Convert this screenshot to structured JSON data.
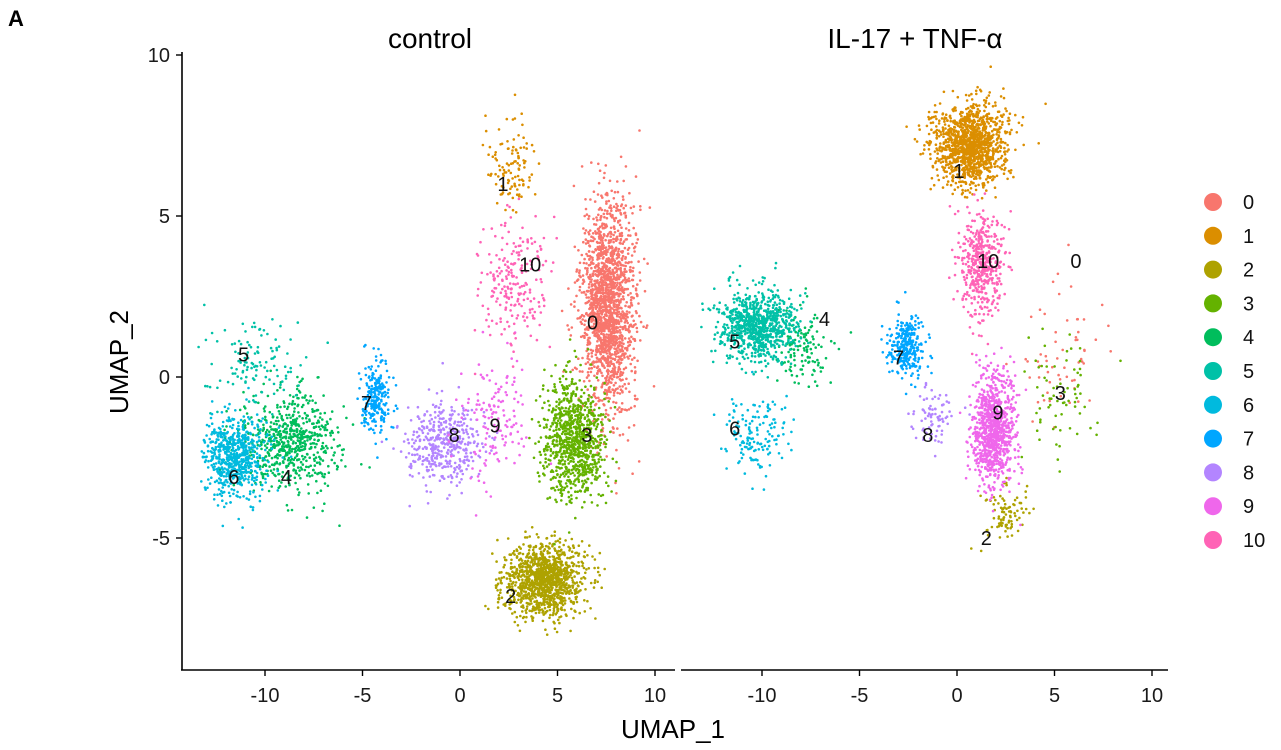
{
  "panel_label": "A",
  "chart_data": {
    "type": "scatter",
    "description": "UMAP projection of single cells, faceted by condition, colored by cluster",
    "xlabel": "UMAP_1",
    "ylabel": "UMAP_2",
    "xlim": [
      -14,
      11
    ],
    "ylim": [
      -9.3,
      10.2
    ],
    "xticks": [
      -10,
      -5,
      0,
      5,
      10
    ],
    "yticks": [
      -5,
      0,
      5,
      10
    ],
    "grid": false,
    "legend_position": "right",
    "legend": [
      {
        "label": "0",
        "color": "#F8766D"
      },
      {
        "label": "1",
        "color": "#DB8E00"
      },
      {
        "label": "2",
        "color": "#AEA200"
      },
      {
        "label": "3",
        "color": "#64B200"
      },
      {
        "label": "4",
        "color": "#00BD5C"
      },
      {
        "label": "5",
        "color": "#00C1A7"
      },
      {
        "label": "6",
        "color": "#00BADE"
      },
      {
        "label": "7",
        "color": "#00A6FF"
      },
      {
        "label": "8",
        "color": "#B385FF"
      },
      {
        "label": "9",
        "color": "#EF67EB"
      },
      {
        "label": "10",
        "color": "#FF63B6"
      }
    ],
    "facets": [
      {
        "title": "control",
        "cluster_label_positions": [
          {
            "label": "0",
            "x": 6.8,
            "y": 1.7
          },
          {
            "label": "1",
            "x": 2.2,
            "y": 6.0
          },
          {
            "label": "2",
            "x": 2.6,
            "y": -6.8
          },
          {
            "label": "3",
            "x": 6.5,
            "y": -1.8
          },
          {
            "label": "4",
            "x": -8.9,
            "y": -3.1
          },
          {
            "label": "5",
            "x": -11.1,
            "y": 0.7
          },
          {
            "label": "6",
            "x": -11.6,
            "y": -3.1
          },
          {
            "label": "7",
            "x": -4.8,
            "y": -0.8
          },
          {
            "label": "8",
            "x": -0.3,
            "y": -1.8
          },
          {
            "label": "9",
            "x": 1.8,
            "y": -1.5
          },
          {
            "label": "10",
            "x": 3.6,
            "y": 3.5
          }
        ],
        "clusters": [
          {
            "cluster": "0",
            "cx": 7.6,
            "cy": 2.2,
            "sx": 1.1,
            "sy": 2.6,
            "n": 1800
          },
          {
            "cluster": "1",
            "cx": 2.7,
            "cy": 6.6,
            "sx": 1.0,
            "sy": 1.2,
            "n": 110
          },
          {
            "cluster": "2",
            "cx": 4.4,
            "cy": -6.3,
            "sx": 1.6,
            "sy": 0.9,
            "n": 1200
          },
          {
            "cluster": "3",
            "cx": 5.8,
            "cy": -1.9,
            "sx": 1.3,
            "sy": 1.5,
            "n": 900
          },
          {
            "cluster": "4",
            "cx": -8.7,
            "cy": -2.0,
            "sx": 2.0,
            "sy": 1.2,
            "n": 650
          },
          {
            "cluster": "5",
            "cx": -10.5,
            "cy": 0.4,
            "sx": 2.0,
            "sy": 1.1,
            "n": 120
          },
          {
            "cluster": "6",
            "cx": -11.6,
            "cy": -2.5,
            "sx": 1.3,
            "sy": 1.0,
            "n": 650
          },
          {
            "cluster": "7",
            "cx": -4.3,
            "cy": -0.6,
            "sx": 0.6,
            "sy": 0.9,
            "n": 230
          },
          {
            "cluster": "8",
            "cx": -0.8,
            "cy": -2.1,
            "sx": 1.5,
            "sy": 1.0,
            "n": 420
          },
          {
            "cluster": "9",
            "cx": 1.8,
            "cy": -1.4,
            "sx": 1.4,
            "sy": 1.6,
            "n": 140
          },
          {
            "cluster": "10",
            "cx": 2.9,
            "cy": 2.9,
            "sx": 1.4,
            "sy": 1.6,
            "n": 220
          }
        ]
      },
      {
        "title": "IL-17 + TNF-α",
        "cluster_label_positions": [
          {
            "label": "0",
            "x": 6.1,
            "y": 3.6
          },
          {
            "label": "1",
            "x": 0.1,
            "y": 6.4
          },
          {
            "label": "2",
            "x": 1.5,
            "y": -5.0
          },
          {
            "label": "3",
            "x": 5.3,
            "y": -0.5
          },
          {
            "label": "4",
            "x": -6.8,
            "y": 1.8
          },
          {
            "label": "5",
            "x": -11.4,
            "y": 1.1
          },
          {
            "label": "6",
            "x": -11.4,
            "y": -1.6
          },
          {
            "label": "7",
            "x": -3.0,
            "y": 0.6
          },
          {
            "label": "8",
            "x": -1.5,
            "y": -1.8
          },
          {
            "label": "9",
            "x": 2.1,
            "y": -1.1
          },
          {
            "label": "10",
            "x": 1.6,
            "y": 3.6
          }
        ],
        "clusters": [
          {
            "cluster": "0",
            "cx": 5.2,
            "cy": 0.8,
            "sx": 2.0,
            "sy": 2.0,
            "n": 60
          },
          {
            "cluster": "1",
            "cx": 0.7,
            "cy": 7.2,
            "sx": 1.5,
            "sy": 1.0,
            "n": 1300
          },
          {
            "cluster": "2",
            "cx": 2.4,
            "cy": -4.3,
            "sx": 0.9,
            "sy": 0.8,
            "n": 90
          },
          {
            "cluster": "3",
            "cx": 5.0,
            "cy": -0.5,
            "sx": 1.6,
            "sy": 1.4,
            "n": 70
          },
          {
            "cluster": "4",
            "cx": -8.0,
            "cy": 0.9,
            "sx": 1.2,
            "sy": 1.0,
            "n": 130
          },
          {
            "cluster": "5",
            "cx": -10.3,
            "cy": 1.6,
            "sx": 1.5,
            "sy": 0.9,
            "n": 850
          },
          {
            "cluster": "6",
            "cx": -10.5,
            "cy": -1.8,
            "sx": 1.4,
            "sy": 1.0,
            "n": 150
          },
          {
            "cluster": "7",
            "cx": -2.6,
            "cy": 0.9,
            "sx": 0.8,
            "sy": 0.8,
            "n": 300
          },
          {
            "cluster": "8",
            "cx": -1.3,
            "cy": -1.2,
            "sx": 0.8,
            "sy": 0.6,
            "n": 80
          },
          {
            "cluster": "9",
            "cx": 1.9,
            "cy": -1.7,
            "sx": 0.9,
            "sy": 1.4,
            "n": 900
          },
          {
            "cluster": "10",
            "cx": 1.3,
            "cy": 3.5,
            "sx": 0.9,
            "sy": 1.3,
            "n": 450
          }
        ]
      }
    ]
  }
}
